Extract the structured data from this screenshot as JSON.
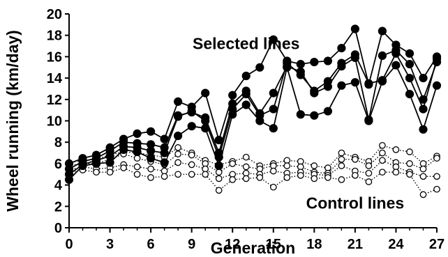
{
  "chart_data": {
    "type": "line",
    "xlabel": "Generation",
    "ylabel": "Wheel running (km/day)",
    "xlim": [
      0,
      27
    ],
    "ylim": [
      0,
      20
    ],
    "xticks": [
      0,
      3,
      6,
      9,
      12,
      15,
      18,
      21,
      24,
      27
    ],
    "yticks": [
      0,
      2,
      4,
      6,
      8,
      10,
      12,
      14,
      16,
      18,
      20
    ],
    "grid": false,
    "legend": "none",
    "annotations": [
      {
        "text": "Selected lines",
        "x": 13,
        "y": 16.7
      },
      {
        "text": "Control lines",
        "x": 21,
        "y": 1.8
      }
    ],
    "series": [
      {
        "group": "selected",
        "marker": "filled-circle",
        "line": "solid",
        "color": "#000000",
        "x": [
          0,
          1,
          2,
          3,
          4,
          5,
          6,
          7,
          8,
          9,
          10,
          11,
          12,
          13,
          14,
          15,
          16,
          17,
          18,
          19,
          20,
          21,
          22,
          23,
          24,
          25,
          26,
          27
        ],
        "y": [
          6.0,
          6.5,
          6.8,
          7.5,
          8.3,
          8.8,
          9.0,
          8.3,
          11.8,
          11.3,
          12.6,
          8.2,
          12.4,
          14.2,
          15.0,
          17.6,
          15.6,
          15.3,
          15.5,
          15.6,
          16.8,
          18.6,
          13.4,
          18.4,
          17.1,
          16.3,
          14.0,
          16.0
        ]
      },
      {
        "group": "selected",
        "marker": "filled-circle",
        "line": "solid",
        "color": "#000000",
        "x": [
          0,
          1,
          2,
          3,
          4,
          5,
          6,
          7,
          8,
          9,
          10,
          11,
          12,
          13,
          14,
          15,
          16,
          17,
          18,
          19,
          20,
          21,
          22,
          23,
          24,
          25,
          26,
          27
        ],
        "y": [
          5.5,
          6.2,
          6.5,
          7.2,
          8.0,
          7.9,
          7.8,
          7.5,
          10.5,
          10.8,
          10.3,
          7.0,
          11.6,
          12.8,
          10.7,
          12.6,
          15.1,
          14.6,
          12.6,
          13.2,
          15.1,
          15.9,
          10.1,
          16.1,
          16.6,
          15.3,
          12.0,
          15.5
        ]
      },
      {
        "group": "selected",
        "marker": "filled-circle",
        "line": "solid",
        "color": "#000000",
        "x": [
          0,
          1,
          2,
          3,
          4,
          5,
          6,
          7,
          8,
          9,
          10,
          11,
          12,
          13,
          14,
          15,
          16,
          17,
          18,
          19,
          20,
          21,
          22,
          23,
          24,
          25,
          26,
          27
        ],
        "y": [
          5.0,
          5.9,
          6.3,
          6.7,
          7.6,
          7.5,
          7.2,
          7.0,
          10.4,
          10.9,
          10.0,
          6.6,
          11.1,
          12.5,
          10.5,
          11.1,
          15.4,
          14.3,
          12.8,
          13.7,
          15.4,
          16.2,
          13.5,
          13.8,
          16.3,
          14.0,
          11.1,
          15.8
        ]
      },
      {
        "group": "selected",
        "marker": "filled-circle",
        "line": "solid",
        "color": "#000000",
        "x": [
          0,
          1,
          2,
          3,
          4,
          5,
          6,
          7,
          8,
          9,
          10,
          11,
          12,
          13,
          14,
          15,
          16,
          17,
          18,
          19,
          20,
          21,
          22,
          23,
          24,
          25,
          26,
          27
        ],
        "y": [
          4.5,
          5.8,
          6.0,
          6.1,
          7.3,
          7.1,
          6.5,
          6.1,
          8.6,
          9.5,
          9.3,
          5.8,
          10.6,
          11.5,
          10.0,
          9.3,
          15.0,
          10.6,
          10.5,
          10.9,
          13.3,
          13.6,
          10.0,
          13.7,
          15.2,
          12.5,
          9.2,
          13.3
        ]
      },
      {
        "group": "control",
        "marker": "open-circle",
        "line": "dotted",
        "color": "#000000",
        "x": [
          0,
          1,
          2,
          3,
          4,
          5,
          6,
          7,
          8,
          9,
          10,
          11,
          12,
          13,
          14,
          15,
          16,
          17,
          18,
          19,
          20,
          21,
          22,
          23,
          24,
          25,
          26,
          27
        ],
        "y": [
          6.1,
          6.3,
          6.4,
          6.8,
          7.1,
          7.0,
          6.8,
          6.6,
          7.5,
          7.0,
          6.3,
          5.9,
          6.2,
          6.6,
          5.8,
          6.0,
          6.3,
          6.2,
          5.8,
          5.6,
          7.0,
          6.6,
          6.2,
          7.7,
          7.3,
          7.1,
          6.0,
          6.7
        ]
      },
      {
        "group": "control",
        "marker": "open-circle",
        "line": "dotted",
        "color": "#000000",
        "x": [
          0,
          1,
          2,
          3,
          4,
          5,
          6,
          7,
          8,
          9,
          10,
          11,
          12,
          13,
          14,
          15,
          16,
          17,
          18,
          19,
          20,
          21,
          22,
          23,
          24,
          25,
          26,
          27
        ],
        "y": [
          5.8,
          6.0,
          6.0,
          6.4,
          6.9,
          6.5,
          6.2,
          5.9,
          6.9,
          6.8,
          6.0,
          5.2,
          6.0,
          5.7,
          5.5,
          5.8,
          5.8,
          5.7,
          5.2,
          5.1,
          6.4,
          6.4,
          5.8,
          7.0,
          6.1,
          6.0,
          5.5,
          6.5
        ]
      },
      {
        "group": "control",
        "marker": "open-circle",
        "line": "dotted",
        "color": "#000000",
        "x": [
          0,
          1,
          2,
          3,
          4,
          5,
          6,
          7,
          8,
          9,
          10,
          11,
          12,
          13,
          14,
          15,
          16,
          17,
          18,
          19,
          20,
          21,
          22,
          23,
          24,
          25,
          26,
          27
        ],
        "y": [
          5.4,
          5.7,
          5.5,
          5.6,
          5.9,
          5.7,
          5.5,
          5.3,
          6.1,
          5.9,
          5.5,
          4.6,
          5.0,
          5.1,
          5.0,
          5.3,
          5.1,
          5.2,
          5.0,
          4.9,
          5.8,
          5.3,
          5.1,
          6.3,
          5.7,
          5.2,
          4.8,
          4.8
        ]
      },
      {
        "group": "control",
        "marker": "open-circle",
        "line": "dotted",
        "color": "#000000",
        "x": [
          0,
          1,
          2,
          3,
          4,
          5,
          6,
          7,
          8,
          9,
          10,
          11,
          12,
          13,
          14,
          15,
          16,
          17,
          18,
          19,
          20,
          21,
          22,
          23,
          24,
          25,
          26,
          27
        ],
        "y": [
          5.2,
          5.4,
          5.2,
          5.2,
          5.6,
          5.0,
          4.7,
          4.8,
          5.0,
          5.0,
          5.0,
          3.5,
          4.5,
          4.6,
          4.7,
          3.8,
          4.7,
          4.9,
          4.6,
          4.7,
          4.5,
          4.9,
          4.3,
          5.2,
          5.2,
          5.0,
          3.1,
          3.6
        ]
      }
    ]
  }
}
